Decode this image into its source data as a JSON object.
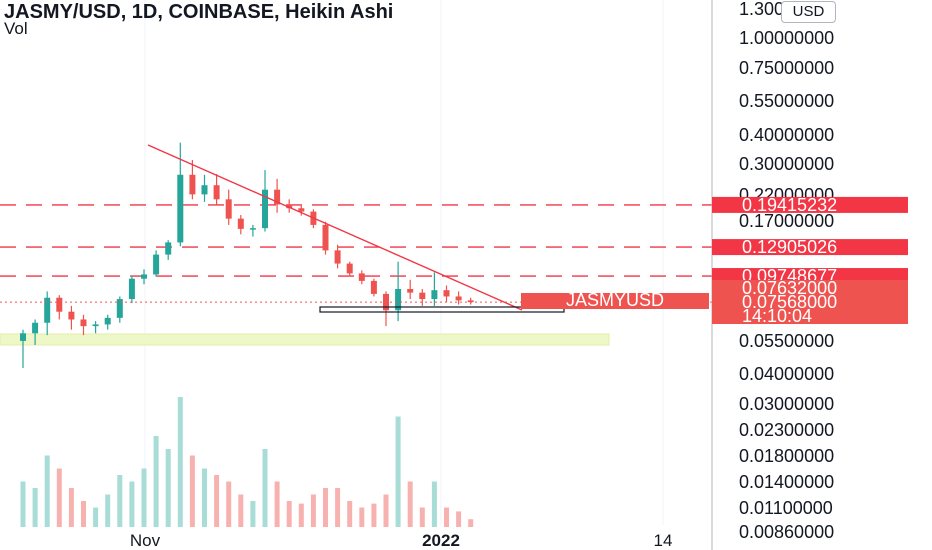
{
  "header": {
    "title": "JASMY/USD, 1D, COINBASE, Heikin Ashi",
    "vol_label": "Vol",
    "currency_button": "USD"
  },
  "colors": {
    "up": "#26a69a",
    "down": "#ef5350",
    "line": "#f23645",
    "zone": "#eef7c8",
    "grid": "#f0f3fa"
  },
  "price_axis": {
    "ticks": [
      "1.30000000",
      "1.00000000",
      "0.75000000",
      "0.55000000",
      "0.40000000",
      "0.30000000",
      "0.22000000",
      "0.17000000",
      "0.05500000",
      "0.04000000",
      "0.03000000",
      "0.02300000",
      "0.01800000",
      "0.01400000",
      "0.01100000",
      "0.00860000"
    ]
  },
  "time_axis": {
    "labels": [
      "Nov",
      "2022",
      "14"
    ]
  },
  "badges": [
    {
      "text": "0.19415232",
      "kind": "line"
    },
    {
      "text": "0.12905026",
      "kind": "line"
    },
    {
      "text": "0.09748677",
      "kind": "line"
    },
    {
      "text": "0.07632000",
      "kind": "price"
    },
    {
      "text": "0.07568000",
      "kind": "price"
    },
    {
      "text": "14:10:04",
      "kind": "countdown"
    }
  ],
  "symbol_label": "JASMYUSD",
  "chart_data": {
    "type": "candlestick",
    "scale": "log",
    "horizontal_levels": [
      0.19415232,
      0.12905026,
      0.09748677
    ],
    "last_price": 0.07568,
    "candles": [
      {
        "o": 0.052,
        "h": 0.058,
        "l": 0.04,
        "c": 0.056
      },
      {
        "o": 0.056,
        "h": 0.064,
        "l": 0.05,
        "c": 0.062
      },
      {
        "o": 0.062,
        "h": 0.084,
        "l": 0.055,
        "c": 0.079
      },
      {
        "o": 0.079,
        "h": 0.081,
        "l": 0.064,
        "c": 0.069
      },
      {
        "o": 0.069,
        "h": 0.073,
        "l": 0.058,
        "c": 0.064
      },
      {
        "o": 0.064,
        "h": 0.067,
        "l": 0.055,
        "c": 0.06
      },
      {
        "o": 0.06,
        "h": 0.063,
        "l": 0.056,
        "c": 0.061
      },
      {
        "o": 0.061,
        "h": 0.067,
        "l": 0.058,
        "c": 0.065
      },
      {
        "o": 0.065,
        "h": 0.08,
        "l": 0.062,
        "c": 0.078
      },
      {
        "o": 0.078,
        "h": 0.098,
        "l": 0.075,
        "c": 0.095
      },
      {
        "o": 0.095,
        "h": 0.104,
        "l": 0.09,
        "c": 0.099
      },
      {
        "o": 0.099,
        "h": 0.125,
        "l": 0.097,
        "c": 0.12
      },
      {
        "o": 0.12,
        "h": 0.138,
        "l": 0.114,
        "c": 0.135
      },
      {
        "o": 0.135,
        "h": 0.355,
        "l": 0.13,
        "c": 0.26
      },
      {
        "o": 0.26,
        "h": 0.3,
        "l": 0.205,
        "c": 0.215
      },
      {
        "o": 0.215,
        "h": 0.26,
        "l": 0.2,
        "c": 0.235
      },
      {
        "o": 0.235,
        "h": 0.262,
        "l": 0.195,
        "c": 0.205
      },
      {
        "o": 0.205,
        "h": 0.225,
        "l": 0.16,
        "c": 0.17
      },
      {
        "o": 0.17,
        "h": 0.176,
        "l": 0.146,
        "c": 0.154
      },
      {
        "o": 0.154,
        "h": 0.16,
        "l": 0.143,
        "c": 0.155
      },
      {
        "o": 0.155,
        "h": 0.272,
        "l": 0.15,
        "c": 0.225
      },
      {
        "o": 0.225,
        "h": 0.25,
        "l": 0.18,
        "c": 0.195
      },
      {
        "o": 0.195,
        "h": 0.205,
        "l": 0.18,
        "c": 0.188
      },
      {
        "o": 0.188,
        "h": 0.195,
        "l": 0.175,
        "c": 0.182
      },
      {
        "o": 0.182,
        "h": 0.186,
        "l": 0.155,
        "c": 0.16
      },
      {
        "o": 0.16,
        "h": 0.165,
        "l": 0.12,
        "c": 0.125
      },
      {
        "o": 0.125,
        "h": 0.132,
        "l": 0.105,
        "c": 0.11
      },
      {
        "o": 0.11,
        "h": 0.112,
        "l": 0.097,
        "c": 0.1
      },
      {
        "o": 0.1,
        "h": 0.103,
        "l": 0.09,
        "c": 0.093
      },
      {
        "o": 0.093,
        "h": 0.095,
        "l": 0.08,
        "c": 0.082
      },
      {
        "o": 0.082,
        "h": 0.084,
        "l": 0.06,
        "c": 0.07
      },
      {
        "o": 0.07,
        "h": 0.112,
        "l": 0.063,
        "c": 0.086
      },
      {
        "o": 0.086,
        "h": 0.094,
        "l": 0.078,
        "c": 0.083
      },
      {
        "o": 0.083,
        "h": 0.086,
        "l": 0.073,
        "c": 0.078
      },
      {
        "o": 0.078,
        "h": 0.101,
        "l": 0.073,
        "c": 0.085
      },
      {
        "o": 0.085,
        "h": 0.089,
        "l": 0.076,
        "c": 0.08
      },
      {
        "o": 0.08,
        "h": 0.084,
        "l": 0.074,
        "c": 0.077
      },
      {
        "o": 0.077,
        "h": 0.079,
        "l": 0.074,
        "c": 0.0757
      }
    ],
    "volume": [
      0.35,
      0.3,
      0.55,
      0.45,
      0.3,
      0.2,
      0.15,
      0.25,
      0.4,
      0.35,
      0.45,
      0.7,
      0.6,
      1.0,
      0.55,
      0.45,
      0.4,
      0.35,
      0.25,
      0.2,
      0.6,
      0.35,
      0.2,
      0.18,
      0.25,
      0.3,
      0.3,
      0.2,
      0.15,
      0.18,
      0.25,
      0.85,
      0.35,
      0.15,
      0.35,
      0.15,
      0.12,
      0.06
    ]
  }
}
